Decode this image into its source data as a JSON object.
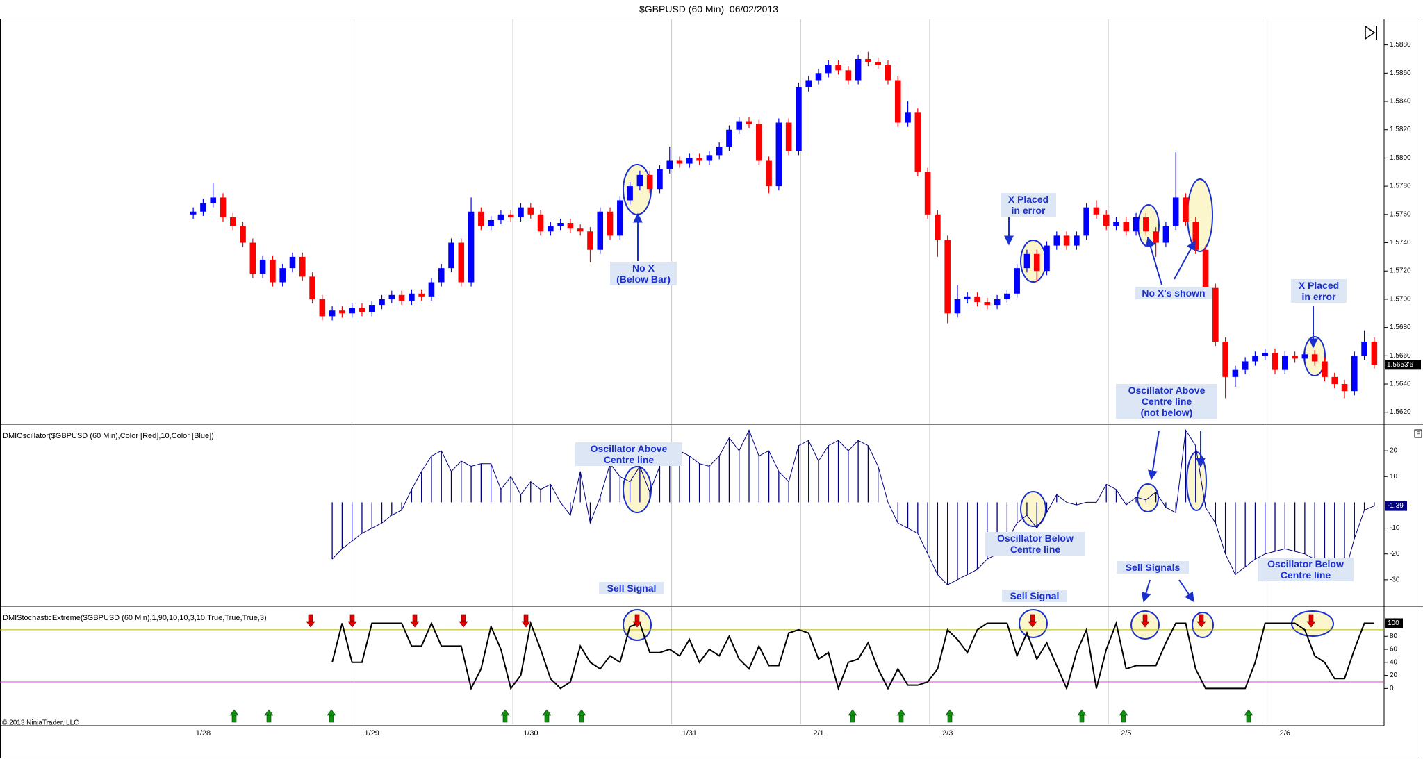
{
  "chart_data": [
    {
      "type": "candlestick",
      "title": "$GBPUSD (60 Min)  06/02/2013",
      "categories": [
        null,
        "1/28",
        null,
        null,
        null,
        null,
        null,
        null,
        null,
        null,
        null,
        null,
        null,
        null,
        null,
        null,
        null,
        null,
        "1/29",
        null,
        null,
        null,
        null,
        null,
        null,
        null,
        null,
        null,
        null,
        null,
        null,
        null,
        null,
        null,
        "1/30",
        null,
        null,
        null,
        null,
        null,
        null,
        null,
        null,
        null,
        null,
        null,
        null,
        null,
        null,
        null,
        "1/31",
        null,
        null,
        null,
        null,
        null,
        null,
        null,
        null,
        null,
        null,
        null,
        null,
        "2/1",
        null,
        null,
        null,
        null,
        null,
        null,
        null,
        null,
        null,
        null,
        null,
        null,
        "2/3",
        null,
        null,
        null,
        null,
        null,
        null,
        null,
        null,
        null,
        null,
        null,
        null,
        null,
        null,
        null,
        null,
        null,
        "2/5",
        null,
        null,
        null,
        null,
        null,
        null,
        null,
        null,
        null,
        null,
        null,
        null,
        null,
        null,
        null,
        "2/6",
        null,
        null,
        null,
        null,
        null,
        null,
        null,
        null,
        null
      ],
      "open": [
        1.576,
        1.5762,
        1.5768,
        1.5772,
        1.5758,
        1.5752,
        1.574,
        1.5718,
        1.5728,
        1.5712,
        1.5722,
        1.573,
        1.5716,
        1.57,
        1.5688,
        1.5692,
        1.569,
        1.5694,
        1.5691,
        1.5696,
        1.57,
        1.5703,
        1.5699,
        1.5704,
        1.5702,
        1.5712,
        1.5722,
        1.574,
        1.5712,
        1.5762,
        1.5752,
        1.5756,
        1.576,
        1.5758,
        1.5765,
        1.576,
        1.5748,
        1.5752,
        1.5754,
        1.575,
        1.5748,
        1.5735,
        1.5762,
        1.5745,
        1.577,
        1.578,
        1.5788,
        1.5778,
        1.5792,
        1.5798,
        1.5796,
        1.58,
        1.5798,
        1.5802,
        1.5808,
        1.582,
        1.5826,
        1.5824,
        1.5798,
        1.578,
        1.5825,
        1.5805,
        1.585,
        1.5855,
        1.586,
        1.5866,
        1.5862,
        1.5855,
        1.587,
        1.5868,
        1.5866,
        1.5855,
        1.5825,
        1.5832,
        1.579,
        1.576,
        1.5742,
        1.569,
        1.57,
        1.5702,
        1.5698,
        1.5696,
        1.57,
        1.5704,
        1.5722,
        1.5732,
        1.572,
        1.5738,
        1.5745,
        1.5738,
        1.5745,
        1.5765,
        1.576,
        1.5752,
        1.5755,
        1.5748,
        1.5758,
        1.5748,
        1.574,
        1.5752,
        1.5772,
        1.5755,
        1.5735,
        1.5708,
        1.567,
        1.5645,
        1.565,
        1.5656,
        1.566,
        1.5662,
        1.565,
        1.566,
        1.5658,
        1.5661,
        1.5656,
        1.5645,
        1.564,
        1.5635,
        1.566,
        1.567
      ],
      "high": [
        1.5765,
        1.5771,
        1.5782,
        1.5775,
        1.5761,
        1.5755,
        1.5743,
        1.5731,
        1.5731,
        1.5725,
        1.5733,
        1.5733,
        1.5719,
        1.5703,
        1.5695,
        1.5695,
        1.5697,
        1.5697,
        1.5699,
        1.5703,
        1.5706,
        1.5706,
        1.5707,
        1.5707,
        1.5715,
        1.5725,
        1.5743,
        1.5743,
        1.5772,
        1.5765,
        1.5759,
        1.5763,
        1.5763,
        1.5768,
        1.5768,
        1.5763,
        1.5755,
        1.5757,
        1.5757,
        1.5753,
        1.5751,
        1.5765,
        1.5765,
        1.5773,
        1.5783,
        1.5791,
        1.5791,
        1.5795,
        1.5808,
        1.5801,
        1.5803,
        1.5803,
        1.5805,
        1.5811,
        1.5823,
        1.5829,
        1.5829,
        1.5827,
        1.5801,
        1.5828,
        1.5828,
        1.5853,
        1.5858,
        1.5863,
        1.5869,
        1.5869,
        1.5865,
        1.5873,
        1.5875,
        1.5871,
        1.5869,
        1.5858,
        1.584,
        1.5835,
        1.5793,
        1.5763,
        1.5745,
        1.571,
        1.5705,
        1.5705,
        1.5701,
        1.5703,
        1.5707,
        1.5725,
        1.5735,
        1.5735,
        1.5741,
        1.5748,
        1.5748,
        1.5748,
        1.5768,
        1.577,
        1.5763,
        1.5758,
        1.5758,
        1.5761,
        1.5761,
        1.5751,
        1.5755,
        1.5804,
        1.5775,
        1.5758,
        1.5738,
        1.5711,
        1.5673,
        1.5653,
        1.5659,
        1.5663,
        1.5665,
        1.5665,
        1.5663,
        1.5663,
        1.5664,
        1.5664,
        1.5659,
        1.5648,
        1.5643,
        1.5663,
        1.5678,
        1.5673
      ],
      "low": [
        1.5757,
        1.5759,
        1.5765,
        1.5755,
        1.5749,
        1.5737,
        1.5715,
        1.5715,
        1.5709,
        1.5709,
        1.5719,
        1.5713,
        1.5697,
        1.5685,
        1.5685,
        1.5687,
        1.5687,
        1.5688,
        1.5688,
        1.5693,
        1.5697,
        1.5696,
        1.5696,
        1.5699,
        1.5699,
        1.5709,
        1.5719,
        1.5709,
        1.5709,
        1.5749,
        1.5749,
        1.5753,
        1.5755,
        1.5755,
        1.5757,
        1.5745,
        1.5745,
        1.5749,
        1.5747,
        1.5745,
        1.5726,
        1.5732,
        1.5742,
        1.5742,
        1.5767,
        1.5777,
        1.5775,
        1.5775,
        1.5789,
        1.5793,
        1.5793,
        1.5795,
        1.5795,
        1.5799,
        1.5805,
        1.5817,
        1.5821,
        1.5795,
        1.5775,
        1.5777,
        1.5802,
        1.5802,
        1.5847,
        1.5852,
        1.5857,
        1.5859,
        1.5852,
        1.5852,
        1.5865,
        1.5863,
        1.5852,
        1.5822,
        1.5822,
        1.5787,
        1.5757,
        1.573,
        1.5683,
        1.5687,
        1.5697,
        1.5695,
        1.5693,
        1.5693,
        1.5697,
        1.5701,
        1.5719,
        1.5712,
        1.5717,
        1.5735,
        1.5735,
        1.5735,
        1.5742,
        1.5757,
        1.5749,
        1.5749,
        1.5745,
        1.5745,
        1.5745,
        1.573,
        1.5737,
        1.5749,
        1.5752,
        1.5732,
        1.5705,
        1.5667,
        1.563,
        1.5638,
        1.5647,
        1.5653,
        1.5657,
        1.5647,
        1.5647,
        1.5655,
        1.5655,
        1.5653,
        1.5642,
        1.5637,
        1.563,
        1.5632,
        1.5657,
        1.5651
      ],
      "close": [
        1.5762,
        1.5768,
        1.5772,
        1.5758,
        1.5752,
        1.574,
        1.5718,
        1.5728,
        1.5712,
        1.5722,
        1.573,
        1.5716,
        1.57,
        1.5688,
        1.5692,
        1.569,
        1.5694,
        1.5691,
        1.5696,
        1.57,
        1.5703,
        1.5699,
        1.5704,
        1.5702,
        1.5712,
        1.5722,
        1.574,
        1.5712,
        1.5762,
        1.5752,
        1.5756,
        1.576,
        1.5758,
        1.5765,
        1.576,
        1.5748,
        1.5752,
        1.5754,
        1.575,
        1.5748,
        1.5735,
        1.5762,
        1.5745,
        1.577,
        1.578,
        1.5788,
        1.5778,
        1.5792,
        1.5798,
        1.5796,
        1.58,
        1.5798,
        1.5802,
        1.5808,
        1.582,
        1.5826,
        1.5824,
        1.5798,
        1.578,
        1.5825,
        1.5805,
        1.585,
        1.5855,
        1.586,
        1.5866,
        1.5862,
        1.5855,
        1.587,
        1.5868,
        1.5866,
        1.5855,
        1.5825,
        1.5832,
        1.579,
        1.576,
        1.5742,
        1.569,
        1.57,
        1.5702,
        1.5698,
        1.5696,
        1.57,
        1.5704,
        1.5722,
        1.5732,
        1.572,
        1.5738,
        1.5745,
        1.5738,
        1.5745,
        1.5765,
        1.576,
        1.5752,
        1.5755,
        1.5748,
        1.5758,
        1.5748,
        1.574,
        1.5752,
        1.5772,
        1.5755,
        1.5735,
        1.5708,
        1.567,
        1.5645,
        1.565,
        1.5656,
        1.566,
        1.5662,
        1.565,
        1.566,
        1.5658,
        1.5661,
        1.5656,
        1.5645,
        1.564,
        1.5635,
        1.566,
        1.567,
        1.56536
      ],
      "up_color": "#0000ff",
      "down_color": "#ff0000",
      "ylim": [
        1.5612,
        1.5898
      ],
      "yticks": [
        {
          "value": 1.562,
          "label": "1.5620"
        },
        {
          "value": 1.564,
          "label": "1.5640"
        },
        {
          "value": 1.566,
          "label": "1.5660"
        },
        {
          "value": 1.568,
          "label": "1.5680"
        },
        {
          "value": 1.57,
          "label": "1.5700"
        },
        {
          "value": 1.572,
          "label": "1.5720"
        },
        {
          "value": 1.574,
          "label": "1.5740"
        },
        {
          "value": 1.576,
          "label": "1.5760"
        },
        {
          "value": 1.578,
          "label": "1.5780"
        },
        {
          "value": 1.58,
          "label": "1.5800"
        },
        {
          "value": 1.582,
          "label": "1.5820"
        },
        {
          "value": 1.584,
          "label": "1.5840"
        },
        {
          "value": 1.586,
          "label": "1.5860"
        },
        {
          "value": 1.588,
          "label": "1.5880"
        }
      ],
      "last_label": "1.5653'6",
      "annotations": [
        "No X\n(Below Bar)",
        "X Placed\nin error",
        "No X's shown",
        "X Placed\nin error",
        "Oscillator Above\nCentre line\n(not below)",
        "Oscillator Above\nCentre line",
        "Oscillator Below\nCentre line",
        "Oscillator Below\nCentre line",
        "Sell Signal",
        "Sell Signal",
        "Sell Signals"
      ],
      "copyright": "© 2013 NinjaTrader, LLC"
    },
    {
      "type": "bar",
      "title": "DMIOscillator($GBPUSD (60 Min),Color [Red],10,Color [Blue])",
      "values": [
        null,
        null,
        null,
        null,
        null,
        null,
        null,
        null,
        null,
        null,
        null,
        null,
        null,
        null,
        -22,
        -18,
        -15,
        -12,
        -10,
        -8,
        -5,
        -3,
        5,
        12,
        18,
        20,
        12,
        16,
        14,
        15,
        15,
        5,
        10,
        3,
        8,
        5,
        7,
        0,
        -5,
        12,
        -8,
        2,
        15,
        10,
        8,
        14,
        4,
        14,
        22,
        20,
        18,
        15,
        14,
        18,
        25,
        20,
        28,
        18,
        20,
        12,
        8,
        22,
        24,
        16,
        22,
        24,
        20,
        24,
        22,
        14,
        0,
        -8,
        -10,
        -12,
        -20,
        -28,
        -32,
        -30,
        -28,
        -26,
        -22,
        -20,
        -15,
        -8,
        -5,
        -10,
        -4,
        3,
        0,
        -1,
        0,
        0,
        7,
        5,
        -1,
        2,
        1,
        4,
        -2,
        -4,
        28,
        22,
        -2,
        -8,
        -20,
        -28,
        -25,
        -22,
        -20,
        -19,
        -18,
        -19,
        -20,
        -22,
        -24,
        -25,
        -28,
        -14,
        -3,
        -1.39
      ],
      "color": "#000080",
      "ylim": [
        -40,
        30
      ],
      "yticks": [
        -30,
        -20,
        -10,
        10,
        20
      ]
    },
    {
      "type": "line",
      "title": "DMIStochasticExtreme($GBPUSD (60 Min),1,90,10,10,3,10,True,True,True,3)",
      "values": [
        null,
        null,
        null,
        null,
        null,
        null,
        null,
        null,
        null,
        null,
        null,
        null,
        null,
        null,
        40,
        100,
        40,
        40,
        100,
        100,
        100,
        100,
        65,
        65,
        100,
        65,
        65,
        65,
        0,
        30,
        95,
        60,
        0,
        20,
        100,
        60,
        15,
        0,
        10,
        65,
        40,
        30,
        50,
        40,
        95,
        100,
        55,
        55,
        60,
        50,
        75,
        40,
        60,
        50,
        80,
        45,
        30,
        65,
        35,
        35,
        85,
        90,
        85,
        45,
        55,
        0,
        40,
        45,
        70,
        30,
        0,
        30,
        5,
        5,
        10,
        30,
        90,
        75,
        55,
        90,
        100,
        100,
        100,
        50,
        85,
        45,
        70,
        35,
        0,
        55,
        90,
        0,
        60,
        100,
        30,
        35,
        35,
        35,
        70,
        100,
        100,
        30,
        0,
        0,
        0,
        0,
        0,
        40,
        100,
        100,
        100,
        100,
        90,
        50,
        40,
        15,
        15,
        60,
        100,
        100
      ],
      "color": "#000000",
      "ylim": [
        -55,
        125
      ],
      "yticks": [
        0,
        20,
        40,
        60,
        80
      ],
      "hlines": [
        {
          "value": 90,
          "color": "#b8b800"
        },
        {
          "value": 10,
          "color": "#e040e0"
        }
      ]
    }
  ]
}
